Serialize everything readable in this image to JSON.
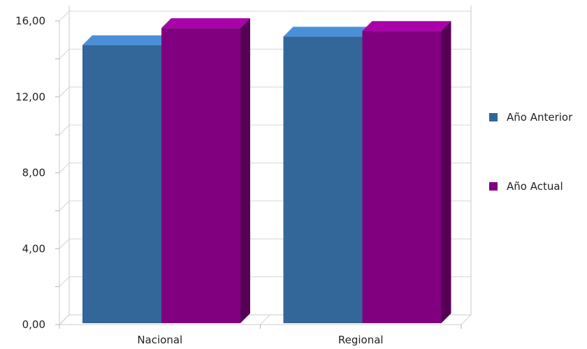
{
  "chart_data": {
    "type": "bar",
    "style": "3d-clustered",
    "categories": [
      "Nacional",
      "Regional"
    ],
    "series": [
      {
        "name": "Año Anterior",
        "values": [
          14.8,
          15.25
        ],
        "color": "#336699",
        "top_color": "#4a90d9",
        "side_color": "#24496e"
      },
      {
        "name": "Año Actual",
        "values": [
          15.7,
          15.55
        ],
        "color": "#800080",
        "top_color": "#aa00aa",
        "side_color": "#550055"
      }
    ],
    "y_ticks": [
      "0,00",
      "4,00",
      "8,00",
      "12,00",
      "16,00"
    ],
    "y_tick_values": [
      0,
      4,
      8,
      12,
      16
    ],
    "ylim": [
      0,
      16
    ],
    "grid": true,
    "legend_position": "right"
  }
}
